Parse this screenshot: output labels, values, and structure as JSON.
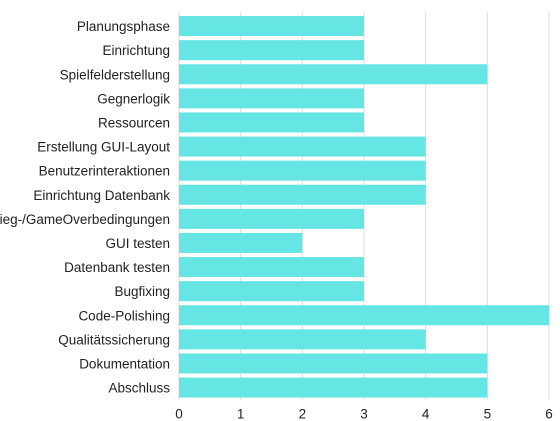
{
  "chart_data": {
    "type": "bar",
    "orientation": "horizontal",
    "title": "",
    "xlabel": "",
    "ylabel": "",
    "categories": [
      "Planungsphase",
      "Einrichtung",
      "Spielfelderstellung",
      "Gegnerlogik",
      "Ressourcen",
      "Erstellung GUI-Layout",
      "Benutzerinteraktionen",
      "Einrichtung Datenbank",
      "Sieg-/GameOverbedingungen",
      "GUI testen",
      "Datenbank testen",
      "Bugfixing",
      "Code-Polishing",
      "Qualitätssicherung",
      "Dokumentation",
      "Abschluss"
    ],
    "values": [
      3,
      3,
      5,
      3,
      3,
      4,
      4,
      4,
      3,
      2,
      3,
      3,
      6,
      4,
      5,
      5
    ],
    "xlim": [
      0,
      6
    ],
    "xticks": [
      "0",
      "1",
      "2",
      "3",
      "4",
      "5",
      "6"
    ],
    "grid": "vertical",
    "legend": "none",
    "bar_color": "#66e5e5"
  }
}
